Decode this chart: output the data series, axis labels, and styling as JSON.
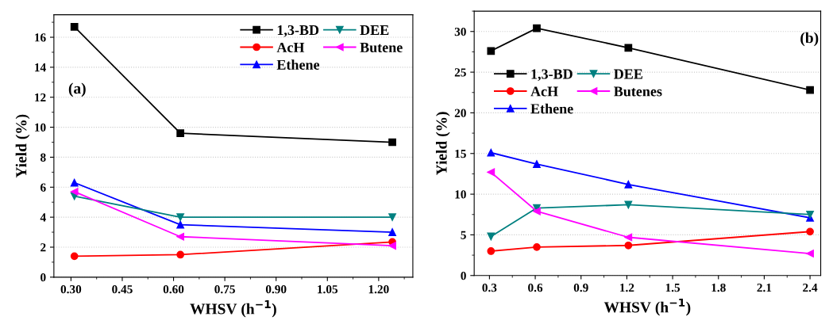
{
  "chart_data": [
    {
      "type": "line",
      "xlabel": "WHSV (h$^{−1}$)",
      "ylabel": "Yield (%)",
      "annotations": [
        "(a)"
      ],
      "xlim": [
        0.25,
        1.3
      ],
      "xticks": [
        {
          "value": 0.3,
          "label": "0.30"
        },
        {
          "value": 0.45,
          "label": "0.45"
        },
        {
          "value": 0.6,
          "label": "0.60"
        },
        {
          "value": 0.75,
          "label": "0.75"
        },
        {
          "value": 0.9,
          "label": "0.90"
        },
        {
          "value": 1.05,
          "label": "1.05"
        },
        {
          "value": 1.2,
          "label": "1.20"
        }
      ],
      "ylim": [
        0,
        17.5
      ],
      "yticks": [
        0,
        2,
        4,
        6,
        8,
        10,
        12,
        14,
        16
      ],
      "grid": "y",
      "legend": "top right",
      "x": [
        0.31,
        0.62,
        1.24
      ],
      "series": [
        {
          "name": "1,3-BD",
          "color": "#000000",
          "marker": "square",
          "values": [
            16.7,
            9.6,
            9.0
          ]
        },
        {
          "name": "AcH",
          "color": "#ff0000",
          "marker": "circle",
          "values": [
            1.4,
            1.5,
            2.35
          ]
        },
        {
          "name": "Ethene",
          "color": "#0000ff",
          "marker": "triangle",
          "values": [
            6.3,
            3.5,
            3.0
          ]
        },
        {
          "name": "DEE",
          "color": "#008080",
          "marker": "triangle_down",
          "values": [
            5.4,
            4.0,
            4.0
          ]
        },
        {
          "name": "Butene",
          "color": "#ff00ff",
          "marker": "triangle_left",
          "values": [
            5.7,
            2.7,
            2.1
          ]
        }
      ]
    },
    {
      "type": "line",
      "xlabel": "WHSV (h$^{−1}$)",
      "ylabel": "Yield (%)",
      "annotations": [
        "(b)"
      ],
      "xlim": [
        0.2,
        2.47
      ],
      "xticks": [
        0.3,
        0.6,
        0.9,
        1.2,
        1.5,
        1.8,
        2.1,
        2.4
      ],
      "ylim": [
        0,
        32.5
      ],
      "yticks": [
        0,
        5,
        10,
        15,
        20,
        25,
        30
      ],
      "grid": "y",
      "legend": "top left",
      "x": [
        0.31,
        0.61,
        1.21,
        2.4
      ],
      "series": [
        {
          "name": "1,3-BD",
          "color": "#000000",
          "marker": "square",
          "values": [
            27.6,
            30.4,
            28.0,
            22.8
          ]
        },
        {
          "name": "AcH",
          "color": "#ff0000",
          "marker": "circle",
          "values": [
            3.0,
            3.5,
            3.7,
            5.4
          ]
        },
        {
          "name": "Ethene",
          "color": "#0000ff",
          "marker": "triangle",
          "values": [
            15.1,
            13.7,
            11.2,
            7.1
          ]
        },
        {
          "name": "DEE",
          "color": "#008080",
          "marker": "triangle_down",
          "values": [
            4.8,
            8.3,
            8.7,
            7.5
          ]
        },
        {
          "name": "Butenes",
          "color": "#ff00ff",
          "marker": "triangle_left",
          "values": [
            12.7,
            7.9,
            4.7,
            2.7
          ]
        }
      ]
    }
  ]
}
